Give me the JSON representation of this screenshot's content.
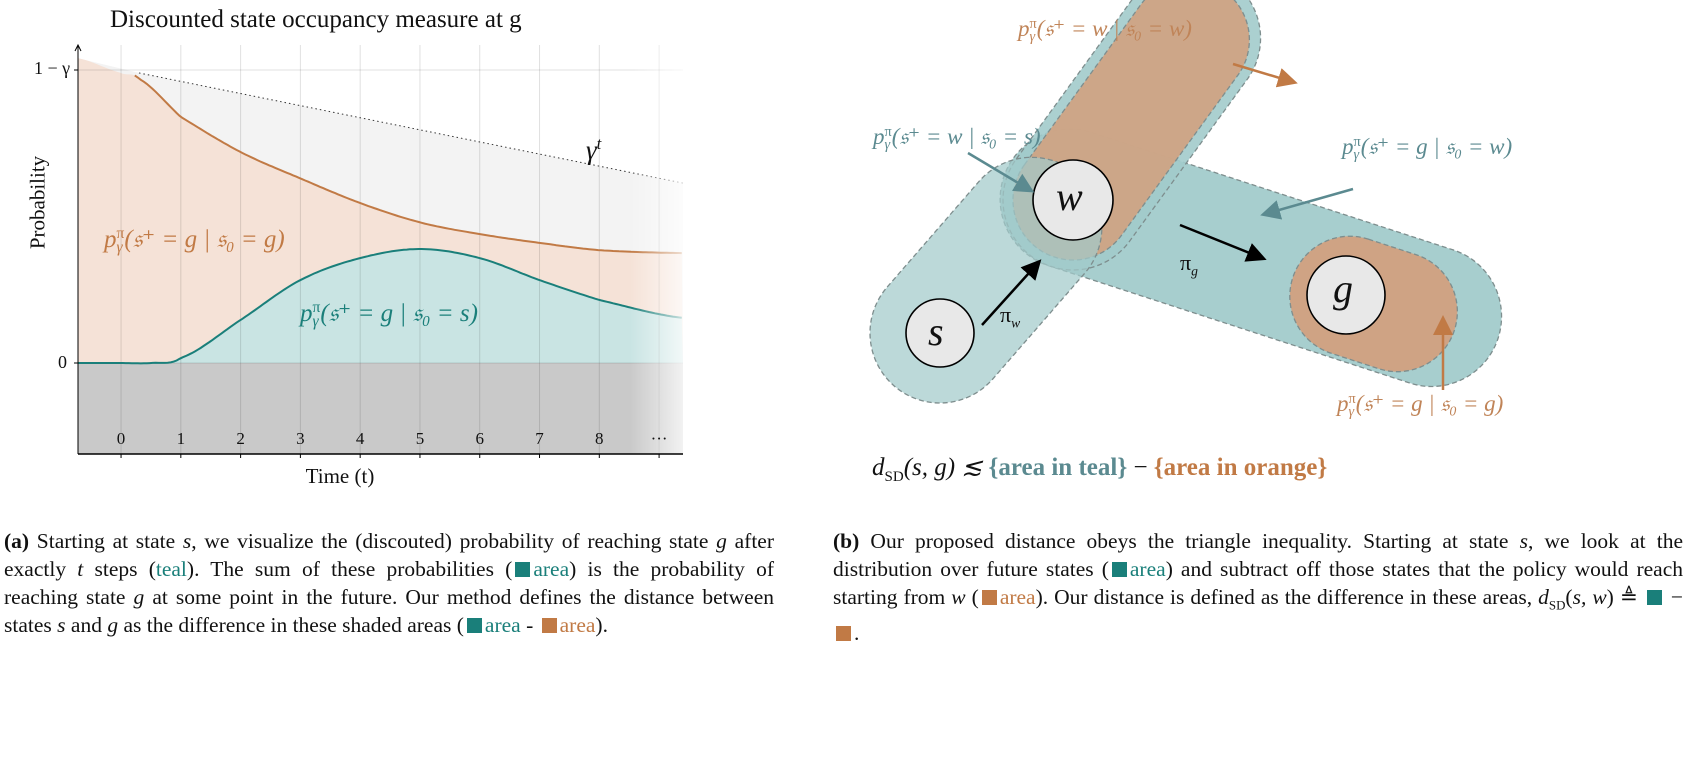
{
  "colors": {
    "teal": "#1a7f7a",
    "teal_fill": "#c9e4e3",
    "orange": "#c17a45",
    "orange_fill": "#f5e2d7",
    "grey_fill": "#c9c9c9",
    "diagram_teal": "#a2cbcb",
    "diagram_orange": "#cfa384",
    "label_teal": "#5b8a90",
    "label_orange": "#c08458"
  },
  "chart_data": {
    "type": "area",
    "title": "Discounted state occupancy measure at g",
    "xlabel": "Time (t)",
    "ylabel": "Probability",
    "x_ticks": [
      "0",
      "1",
      "2",
      "3",
      "4",
      "5",
      "6",
      "7",
      "8",
      "···"
    ],
    "y_ticks": [
      "0",
      "1 − γ"
    ],
    "xlim": [
      -0.72,
      9.4
    ],
    "ylim_units_of_1_minus_gamma": [
      -0.31,
      1.07
    ],
    "grid": true,
    "series": [
      {
        "name": "p^π_γ(𝔰⁺=g | 𝔰₀=g)",
        "color": "orange",
        "x": [
          -0.72,
          0,
          0.3,
          1,
          2,
          3,
          4,
          5,
          6,
          7,
          8,
          9.4
        ],
        "y": [
          1.04,
          0.99,
          0.97,
          0.84,
          0.72,
          0.63,
          0.546,
          0.48,
          0.44,
          0.41,
          0.385,
          0.375
        ]
      },
      {
        "name": "p^π_γ(𝔰⁺=g | 𝔰₀=s)",
        "color": "teal",
        "x": [
          -0.72,
          0,
          0.5,
          1,
          2,
          3,
          4,
          5,
          6,
          7,
          8,
          9.4
        ],
        "y": [
          0,
          0,
          0,
          0.017,
          0.147,
          0.283,
          0.358,
          0.389,
          0.358,
          0.283,
          0.215,
          0.154
        ]
      },
      {
        "name": "γ^t",
        "style": "dotted",
        "x": [
          0.3,
          9.4
        ],
        "y": [
          0.99,
          0.614
        ]
      }
    ],
    "annotations": {
      "gamma_t": "γ",
      "gamma_t_sup": "t"
    }
  },
  "chart_labels": {
    "orange": {
      "base": "p",
      "sup": "π",
      "sub": "γ",
      "arg": "(𝔰⁺ = g | 𝔰₀ = g)"
    },
    "teal": {
      "base": "p",
      "sup": "π",
      "sub": "γ",
      "arg": "(𝔰⁺ = g | 𝔰₀ = s)"
    }
  },
  "diagram": {
    "nodes": {
      "s": "s",
      "w": "w",
      "g": "g"
    },
    "policies": {
      "pi_w": "π",
      "pi_w_sub": "w",
      "pi_g": "π",
      "pi_g_sub": "g"
    },
    "labels": {
      "ww": {
        "base": "p",
        "sup": "π",
        "sub": "γ",
        "arg": "(𝔰⁺ = w | 𝔰₀ = w)"
      },
      "ws": {
        "base": "p",
        "sup": "π",
        "sub": "γ",
        "arg": "(𝔰⁺ = w | 𝔰₀ = s)"
      },
      "gw": {
        "base": "p",
        "sup": "π",
        "sub": "γ",
        "arg": "(𝔰⁺ = g | 𝔰₀ = w)"
      },
      "gg": {
        "base": "p",
        "sup": "π",
        "sub": "γ",
        "arg": "(𝔰⁺ = g | 𝔰₀ = g)"
      }
    },
    "formula": {
      "lhs": "d",
      "lhs_sub": "SD",
      "lhs_args": "(s, g) ≲ ",
      "teal": "{area in teal}",
      "minus": " − ",
      "orange": "{area in orange}"
    }
  },
  "captions": {
    "a": [
      {
        "t": "(a)",
        "b": true
      },
      {
        "t": " Starting at state "
      },
      {
        "t": "s",
        "i": true
      },
      {
        "t": ", we visualize the (discouted) probability of reaching state "
      },
      {
        "t": "g",
        "i": true
      },
      {
        "t": " after exactly "
      },
      {
        "t": "t",
        "i": true
      },
      {
        "t": " steps ("
      },
      {
        "t": "teal",
        "c": "teal"
      },
      {
        "t": ").  The sum of these probabilities ("
      },
      {
        "sq": "teal"
      },
      {
        "t": "area",
        "c": "teal"
      },
      {
        "t": ") is the probability of reaching state "
      },
      {
        "t": "g",
        "i": true
      },
      {
        "t": " at some point in the future. Our method defines the distance between states "
      },
      {
        "t": "s",
        "i": true
      },
      {
        "t": " and "
      },
      {
        "t": "g",
        "i": true
      },
      {
        "t": " as the difference in these shaded areas ("
      },
      {
        "sq": "teal"
      },
      {
        "t": "area",
        "c": "teal"
      },
      {
        "t": " - "
      },
      {
        "sq": "orange"
      },
      {
        "t": "area",
        "c": "orange"
      },
      {
        "t": ")."
      }
    ],
    "b": [
      {
        "t": "(b)",
        "b": true
      },
      {
        "t": " Our proposed distance obeys the triangle inequality. Starting at state "
      },
      {
        "t": "s",
        "i": true
      },
      {
        "t": ", we look at the distribution over future states ("
      },
      {
        "sq": "teal"
      },
      {
        "t": "area",
        "c": "teal"
      },
      {
        "t": ") and subtract off those states that the policy would reach starting from "
      },
      {
        "t": "w",
        "i": true
      },
      {
        "t": " ("
      },
      {
        "sq": "orange"
      },
      {
        "t": "area",
        "c": "orange"
      },
      {
        "t": "). Our distance is defined as the difference in these areas, "
      },
      {
        "t": "d",
        "i": true
      },
      {
        "t": "SD",
        "sub": true
      },
      {
        "t": "("
      },
      {
        "t": "s, w",
        "i": true
      },
      {
        "t": ") ≜ "
      },
      {
        "sq": "teal"
      },
      {
        "t": " − "
      },
      {
        "sq": "orange"
      },
      {
        "t": "."
      }
    ]
  }
}
